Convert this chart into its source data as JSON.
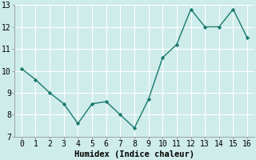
{
  "x": [
    0,
    1,
    2,
    3,
    4,
    5,
    6,
    7,
    8,
    9,
    10,
    11,
    12,
    13,
    14,
    15,
    16
  ],
  "y": [
    10.1,
    9.6,
    9.0,
    8.5,
    7.6,
    8.5,
    8.6,
    8.0,
    7.4,
    8.7,
    10.6,
    11.2,
    12.8,
    12.0,
    12.0,
    12.8,
    11.5
  ],
  "line_color": "#1a7a6e",
  "marker": "D",
  "marker_size": 2.2,
  "linewidth": 1.0,
  "xlabel": "Humidex (Indice chaleur)",
  "xlim": [
    -0.5,
    16.5
  ],
  "ylim": [
    7,
    13
  ],
  "yticks": [
    7,
    8,
    9,
    10,
    11,
    12,
    13
  ],
  "xticks": [
    0,
    1,
    2,
    3,
    4,
    5,
    6,
    7,
    8,
    9,
    10,
    11,
    12,
    13,
    14,
    15,
    16
  ],
  "bg_color": "#ceecea",
  "grid_color": "#ffffff",
  "xlabel_fontsize": 7.5,
  "tick_fontsize": 7,
  "tick_font": "monospace"
}
